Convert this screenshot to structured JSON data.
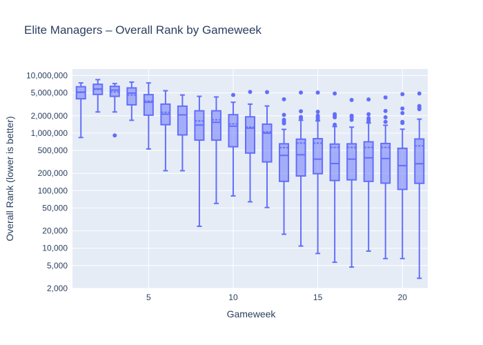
{
  "chart_data": {
    "type": "box",
    "title": "Elite Managers – Overall Rank by Gameweek",
    "xlabel": "Gameweek",
    "ylabel": "Overall Rank (lower is better)",
    "yscale": "log",
    "ylim": [
      2000,
      13000000
    ],
    "xlim": [
      0.5,
      21.5
    ],
    "x_ticks": [
      5,
      10,
      15,
      20
    ],
    "y_ticks": [
      {
        "value": 2000,
        "label": "2,000"
      },
      {
        "value": 5000,
        "label": "5,000"
      },
      {
        "value": 10000,
        "label": "10,000"
      },
      {
        "value": 20000,
        "label": "20,000"
      },
      {
        "value": 50000,
        "label": "50,000"
      },
      {
        "value": 100000,
        "label": "100,000"
      },
      {
        "value": 200000,
        "label": "200,000"
      },
      {
        "value": 500000,
        "label": "500,000"
      },
      {
        "value": 1000000,
        "label": "1,000,000"
      },
      {
        "value": 2000000,
        "label": "2,000,000"
      },
      {
        "value": 5000000,
        "label": "5,000,000"
      },
      {
        "value": 10000000,
        "label": "10,000,000"
      }
    ],
    "grid": true,
    "color": "#636efa",
    "boxes": [
      {
        "x": 1,
        "low": 838000,
        "q1": 3950000,
        "median": 5100000,
        "mean": 5200000,
        "q3": 6400000,
        "high": 7450000,
        "outliers": []
      },
      {
        "x": 2,
        "low": 2330000,
        "q1": 4700000,
        "median": 5860000,
        "mean": 5750000,
        "q3": 7050000,
        "high": 8500000,
        "outliers": []
      },
      {
        "x": 3,
        "low": 2330000,
        "q1": 4350000,
        "median": 5600000,
        "mean": 5200000,
        "q3": 6500000,
        "high": 7250000,
        "outliers": [
          912000
        ]
      },
      {
        "x": 4,
        "low": 1670000,
        "q1": 3100000,
        "median": 4960000,
        "mean": 4600000,
        "q3": 6100000,
        "high": 7700000,
        "outliers": []
      },
      {
        "x": 5,
        "low": 530000,
        "q1": 2050000,
        "median": 3440000,
        "mean": 3600000,
        "q3": 4660000,
        "high": 7450000,
        "outliers": []
      },
      {
        "x": 6,
        "low": 222000,
        "q1": 1400000,
        "median": 2130000,
        "mean": 2300000,
        "q3": 3190000,
        "high": 5450000,
        "outliers": []
      },
      {
        "x": 7,
        "low": 222000,
        "q1": 930000,
        "median": 2070000,
        "mean": 2070000,
        "q3": 2940000,
        "high": 4600000,
        "outliers": []
      },
      {
        "x": 8,
        "low": 24000,
        "q1": 755000,
        "median": 1380000,
        "mean": 1630000,
        "q3": 2440000,
        "high": 4360000,
        "outliers": []
      },
      {
        "x": 9,
        "low": 60000,
        "q1": 755000,
        "median": 1540000,
        "mean": 1700000,
        "q3": 2440000,
        "high": 4250000,
        "outliers": []
      },
      {
        "x": 10,
        "low": 81000,
        "q1": 580000,
        "median": 1320000,
        "mean": 1450000,
        "q3": 2090000,
        "high": 3440000,
        "outliers": [
          4600000
        ]
      },
      {
        "x": 11,
        "low": 64000,
        "q1": 450000,
        "median": 1220000,
        "mean": 1270000,
        "q3": 1920000,
        "high": 3190000,
        "outliers": [
          5200000
        ]
      },
      {
        "x": 12,
        "low": 51000,
        "q1": 316000,
        "median": 1000000,
        "mean": 1050000,
        "q3": 1430000,
        "high": 2960000,
        "outliers": [
          5150000
        ]
      },
      {
        "x": 13,
        "low": 17500,
        "q1": 145000,
        "median": 410000,
        "mean": 560000,
        "q3": 652000,
        "high": 1160000,
        "outliers": [
          3870000,
          2070000,
          1700000,
          1580000,
          1480000
        ]
      },
      {
        "x": 14,
        "low": 10900,
        "q1": 180000,
        "median": 420000,
        "mean": 670000,
        "q3": 785000,
        "high": 1670000,
        "outliers": [
          5060000,
          2400000,
          1900000,
          1820000
        ]
      },
      {
        "x": 15,
        "low": 8100,
        "q1": 197000,
        "median": 353000,
        "mean": 670000,
        "q3": 800000,
        "high": 1630000,
        "outliers": [
          5060000,
          2350000,
          2000000,
          1880000,
          1740000
        ]
      },
      {
        "x": 16,
        "low": 5700,
        "q1": 150000,
        "median": 296000,
        "mean": 565000,
        "q3": 645000,
        "high": 1300000,
        "outliers": [
          4880000,
          2130000,
          2000000,
          1880000,
          1400000
        ]
      },
      {
        "x": 17,
        "low": 4700,
        "q1": 154000,
        "median": 353000,
        "mean": 565000,
        "q3": 652000,
        "high": 1270000,
        "outliers": [
          3770000,
          2000000,
          1880000,
          1700000
        ]
      },
      {
        "x": 18,
        "low": 8900,
        "q1": 145000,
        "median": 372000,
        "mean": 565000,
        "q3": 706000,
        "high": 1500000,
        "outliers": [
          3840000,
          2130000,
          1820000,
          1700000,
          1580000
        ]
      },
      {
        "x": 19,
        "low": 6600,
        "q1": 135000,
        "median": 362000,
        "mean": 565000,
        "q3": 660000,
        "high": 1370000,
        "outliers": [
          4160000,
          2420000,
          1880000,
          1570000
        ]
      },
      {
        "x": 20,
        "low": 6600,
        "q1": 105000,
        "median": 272000,
        "mean": 540000,
        "q3": 545000,
        "high": 1170000,
        "outliers": [
          4740000,
          2680000,
          2230000,
          1570000,
          1500000
        ]
      },
      {
        "x": 21,
        "low": 3000,
        "q1": 134000,
        "median": 294000,
        "mean": 600000,
        "q3": 790000,
        "high": 1750000,
        "outliers": [
          4880000,
          2960000,
          2750000,
          2600000
        ]
      }
    ]
  }
}
